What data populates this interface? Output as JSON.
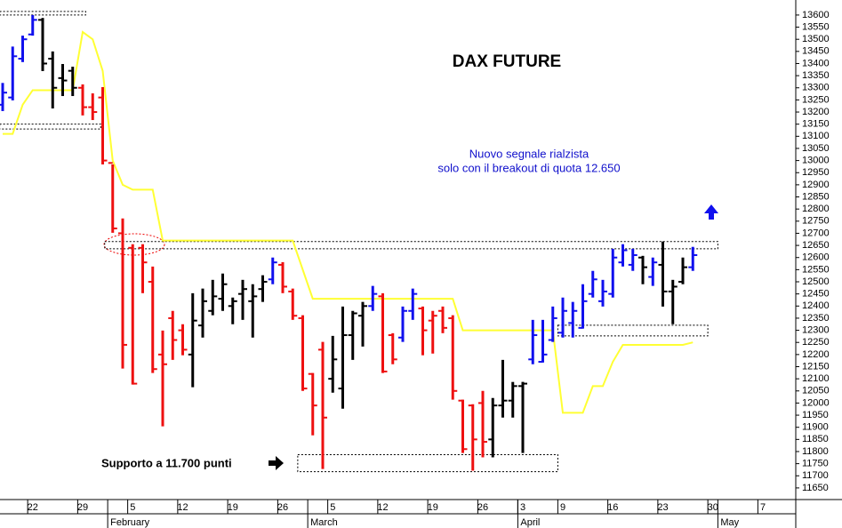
{
  "chart_data": {
    "type": "ohlc",
    "title": "DAX FUTURE",
    "annotations": [
      "Nuovo segnale rialzista",
      "solo con il breakout di quota 12.650",
      "Supporto a 11.700 punti"
    ],
    "categories": [
      null,
      null,
      null,
      "22",
      null,
      null,
      null,
      null,
      "29",
      null,
      null,
      null,
      null,
      "5",
      null,
      null,
      null,
      null,
      "12",
      null,
      null,
      null,
      null,
      "19",
      null,
      null,
      null,
      null,
      "26",
      null,
      null,
      null,
      null,
      "5",
      null,
      null,
      null,
      null,
      "12",
      null,
      null,
      null,
      null,
      "19",
      null,
      null,
      null,
      null,
      "26",
      null,
      null,
      null,
      "3",
      null,
      null,
      null,
      "9",
      null,
      null,
      null,
      null,
      "16",
      null,
      null,
      null,
      null,
      "23",
      null,
      null,
      null,
      null,
      "30",
      null,
      null,
      null,
      null,
      "7"
    ],
    "month_categories": [
      null,
      null,
      null,
      null,
      null,
      null,
      null,
      null,
      null,
      null,
      null,
      "February",
      null,
      null,
      null,
      null,
      null,
      null,
      null,
      null,
      null,
      null,
      null,
      null,
      null,
      null,
      null,
      null,
      null,
      null,
      null,
      "March",
      null,
      null,
      null,
      null,
      null,
      null,
      null,
      null,
      null,
      null,
      null,
      null,
      null,
      null,
      null,
      null,
      null,
      null,
      null,
      null,
      "April",
      null,
      null,
      null,
      null,
      null,
      null,
      null,
      null,
      null,
      null,
      null,
      null,
      null,
      null,
      null,
      null,
      null,
      null,
      null,
      "May",
      null,
      null,
      null,
      null
    ],
    "open": [
      13230,
      13260,
      13420,
      13520,
      13580,
      13420,
      13340,
      13370,
      13300,
      13220,
      13260,
      12990,
      12700,
      12640,
      12640,
      12500,
      12200,
      12350,
      12300,
      12200,
      12320,
      12380,
      12430,
      12400,
      12450,
      12420,
      12470,
      12510,
      12570,
      12460,
      12350,
      12120,
      12220,
      12100,
      12060,
      12280,
      12360,
      12400,
      12440,
      12280,
      12270,
      12380,
      12390,
      12340,
      12380,
      12350,
      12010,
      11990,
      12000,
      11850,
      11990,
      12010,
      12070,
      12180,
      12170,
      12260,
      12290,
      12330,
      12310,
      12450,
      12420,
      12450,
      12580,
      12570,
      12600,
      12520,
      12570,
      12460,
      12500,
      12560,
      null,
      null,
      null,
      null,
      null,
      null,
      null
    ],
    "high": [
      13320,
      13470,
      13515,
      13600,
      13588,
      13450,
      13398,
      13387,
      13314,
      13277,
      13303,
      12984,
      12761,
      12655,
      12655,
      12563,
      12299,
      12380,
      12325,
      12453,
      12472,
      12508,
      12534,
      12435,
      12508,
      12490,
      12527,
      12600,
      12581,
      12472,
      12362,
      12124,
      12252,
      12277,
      12398,
      12380,
      12417,
      12483,
      12453,
      12288,
      12398,
      12472,
      12398,
      12380,
      12398,
      12362,
      12014,
      11995,
      12050,
      12021,
      12178,
      12087,
      12087,
      12343,
      12343,
      12398,
      12435,
      12417,
      12490,
      12545,
      12508,
      12636,
      12655,
      12636,
      12607,
      12600,
      12666,
      12508,
      12600,
      12644,
      null,
      null,
      null,
      null,
      null,
      null,
      null
    ],
    "low": [
      13204,
      13248,
      13406,
      13515,
      13369,
      13215,
      13266,
      13266,
      13186,
      13167,
      12984,
      12702,
      12142,
      12076,
      12453,
      12124,
      11904,
      12178,
      12197,
      12065,
      12270,
      12362,
      12380,
      12325,
      12343,
      12270,
      12417,
      12490,
      12453,
      12343,
      12050,
      11867,
      11728,
      12043,
      11977,
      12178,
      12233,
      12380,
      12124,
      12160,
      12252,
      12343,
      12197,
      12204,
      12288,
      12014,
      11794,
      11721,
      11776,
      11776,
      11940,
      11940,
      11794,
      12160,
      12167,
      12252,
      12270,
      12270,
      12307,
      12435,
      12398,
      12435,
      12563,
      12545,
      12490,
      12483,
      12398,
      12325,
      12490,
      12545,
      null,
      null,
      null,
      null,
      null,
      null,
      null
    ],
    "close": [
      13280,
      13430,
      13500,
      13580,
      13400,
      13300,
      13330,
      13300,
      13220,
      13200,
      13000,
      12720,
      12240,
      12080,
      12580,
      12140,
      12160,
      12260,
      12220,
      12340,
      12420,
      12440,
      12490,
      12420,
      12470,
      12440,
      12500,
      12580,
      12480,
      12360,
      12060,
      11990,
      11940,
      12180,
      12280,
      12370,
      12400,
      12450,
      12130,
      12180,
      12380,
      12450,
      12300,
      12360,
      12310,
      12050,
      11810,
      11850,
      11840,
      11990,
      12010,
      12070,
      12080,
      12280,
      12200,
      12350,
      12380,
      12380,
      12420,
      12510,
      12460,
      12600,
      12630,
      12610,
      12560,
      12580,
      12460,
      12480,
      12560,
      12610,
      null,
      null,
      null,
      null,
      null,
      null,
      null
    ],
    "bar_colors": [
      "#1010ee",
      "#1010ee",
      "#1010ee",
      "#1010ee",
      "#000000",
      "#000000",
      "#000000",
      "#000000",
      "#ee1010",
      "#ee1010",
      "#ee1010",
      "#ee1010",
      "#ee1010",
      "#ee1010",
      "#ee1010",
      "#ee1010",
      "#ee1010",
      "#ee1010",
      "#ee1010",
      "#000000",
      "#000000",
      "#000000",
      "#000000",
      "#000000",
      "#000000",
      "#000000",
      "#000000",
      "#1010ee",
      "#ee1010",
      "#ee1010",
      "#ee1010",
      "#ee1010",
      "#ee1010",
      "#000000",
      "#000000",
      "#000000",
      "#000000",
      "#1010ee",
      "#ee1010",
      "#ee1010",
      "#1010ee",
      "#1010ee",
      "#ee1010",
      "#ee1010",
      "#ee1010",
      "#ee1010",
      "#ee1010",
      "#ee1010",
      "#ee1010",
      "#000000",
      "#000000",
      "#000000",
      "#000000",
      "#1010ee",
      "#1010ee",
      "#1010ee",
      "#1010ee",
      "#1010ee",
      "#1010ee",
      "#1010ee",
      "#1010ee",
      "#1010ee",
      "#1010ee",
      "#1010ee",
      "#000000",
      "#1010ee",
      "#000000",
      "#000000",
      "#000000",
      "#1010ee",
      null,
      null,
      null,
      null,
      null,
      null,
      null
    ],
    "stop_line": {
      "color": "#ffff33",
      "values": [
        13110,
        13110,
        13230,
        13290,
        13290,
        13290,
        13290,
        13290,
        13530,
        13500,
        13370,
        13000,
        12900,
        12880,
        12880,
        12880,
        12670,
        12670,
        12670,
        12670,
        12670,
        12670,
        12670,
        12670,
        12670,
        12670,
        12670,
        12670,
        12670,
        12670,
        12550,
        12430,
        12430,
        12430,
        12430,
        12430,
        12430,
        12430,
        12430,
        12430,
        12430,
        12430,
        12430,
        12430,
        12430,
        12430,
        12300,
        12300,
        12300,
        12300,
        12300,
        12300,
        12300,
        12300,
        12300,
        12300,
        11960,
        11960,
        11960,
        12070,
        12070,
        12170,
        12240,
        12240,
        12240,
        12240,
        12240,
        12240,
        12240,
        12250,
        null,
        null,
        null,
        null,
        null,
        null,
        null
      ]
    },
    "zones": [
      {
        "from": -0.3,
        "to": 8.3,
        "low": 13600,
        "high": 13615
      },
      {
        "from": -0.3,
        "to": 9.8,
        "low": 13130,
        "high": 13150
      },
      {
        "from": 10.2,
        "to": 71.5,
        "low": 12636,
        "high": 12666
      },
      {
        "from": 55.5,
        "to": 70.5,
        "low": 12277,
        "high": 12321
      },
      {
        "from": 29.5,
        "to": 55.5,
        "low": 11717,
        "high": 11787
      }
    ],
    "ylim": [
      11602,
      13662
    ],
    "yticks": [
      11650,
      11700,
      11750,
      11800,
      11850,
      11900,
      11950,
      12000,
      12050,
      12100,
      12150,
      12200,
      12250,
      12300,
      12350,
      12400,
      12450,
      12500,
      12550,
      12600,
      12650,
      12700,
      12750,
      12800,
      12850,
      12900,
      12950,
      13000,
      13050,
      13100,
      13150,
      13200,
      13250,
      13300,
      13350,
      13400,
      13450,
      13500,
      13550,
      13600
    ]
  }
}
